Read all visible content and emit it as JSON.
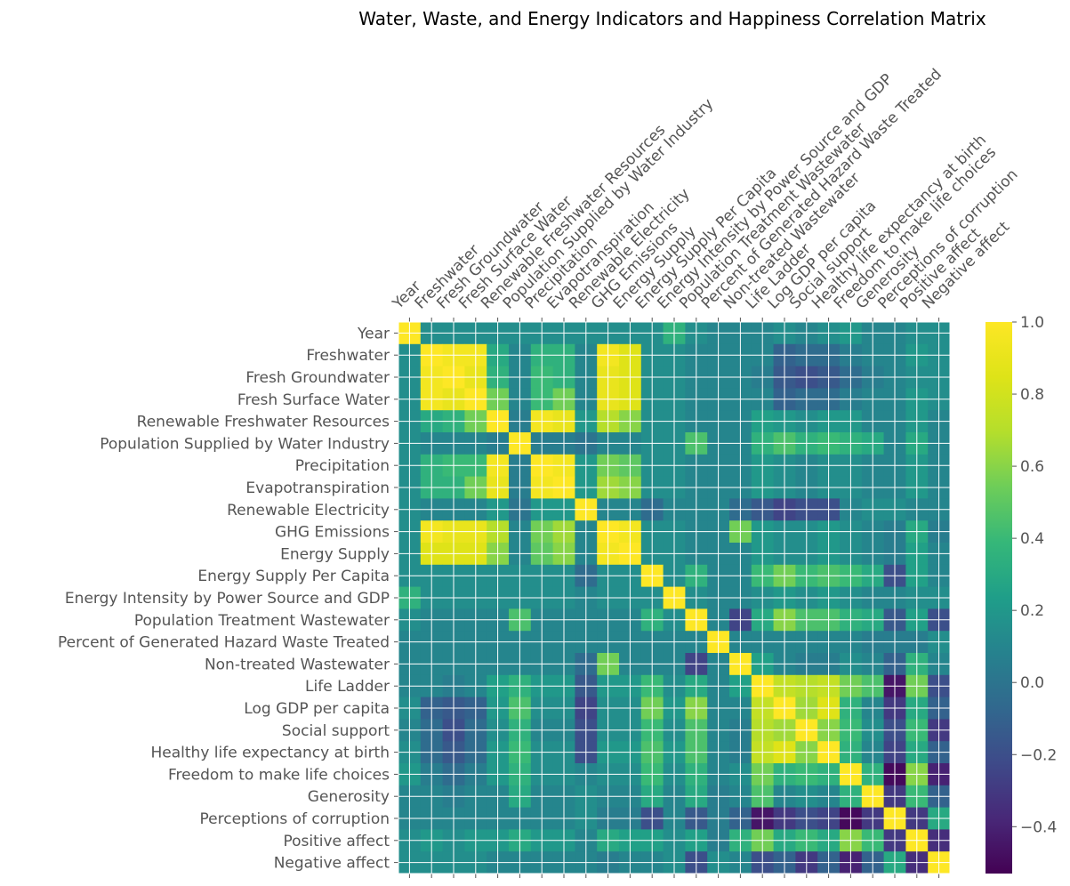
{
  "chart_data": {
    "type": "heatmap",
    "title": "Water, Waste, and Energy Indicators and Happiness Correlation Matrix",
    "variables": [
      "Year",
      "Freshwater",
      "Fresh Groundwater",
      "Fresh Surface Water",
      "Renewable Freshwater Resources",
      "Population Supplied by Water Industry",
      "Precipitation",
      "Evapotranspiration",
      "Renewable Electricity",
      "GHG Emissions",
      "Energy Supply",
      "Energy Supply Per Capita",
      "Energy Intensity by Power Source and GDP",
      "Population Treatment Wastewater",
      "Percent of Generated Hazard Waste Treated",
      "Non-treated Wastewater",
      "Life Ladder",
      "Log GDP per capita",
      "Social support",
      "Healthy life expectancy at birth",
      "Freedom to make life choices",
      "Generosity",
      "Perceptions of corruption",
      "Positive affect",
      "Negative affect"
    ],
    "matrix": [
      [
        1.0,
        0.15,
        0.15,
        0.15,
        0.15,
        0.15,
        0.15,
        0.15,
        0.15,
        0.15,
        0.15,
        0.15,
        0.35,
        0.15,
        0.1,
        0.1,
        0.1,
        0.15,
        0.1,
        0.15,
        0.2,
        0.1,
        0.1,
        0.15,
        0.15
      ],
      [
        0.15,
        1.0,
        0.95,
        0.95,
        0.3,
        0.1,
        0.35,
        0.35,
        0.1,
        0.95,
        0.85,
        0.15,
        0.15,
        0.1,
        0.1,
        0.1,
        0.1,
        -0.1,
        -0.05,
        -0.05,
        0.05,
        0.1,
        0.1,
        0.2,
        0.15
      ],
      [
        0.15,
        0.95,
        1.0,
        0.9,
        0.35,
        0.1,
        0.4,
        0.35,
        0.1,
        0.9,
        0.85,
        0.15,
        0.15,
        0.1,
        0.1,
        0.1,
        0.05,
        -0.15,
        -0.2,
        -0.15,
        -0.05,
        0.05,
        0.1,
        0.15,
        0.15
      ],
      [
        0.15,
        0.95,
        0.9,
        1.0,
        0.55,
        0.1,
        0.4,
        0.55,
        0.1,
        0.9,
        0.85,
        0.15,
        0.15,
        0.1,
        0.1,
        0.1,
        0.1,
        -0.1,
        -0.05,
        -0.05,
        0.05,
        0.1,
        0.1,
        0.2,
        0.15
      ],
      [
        0.15,
        0.3,
        0.35,
        0.55,
        1.0,
        0.05,
        0.95,
        0.9,
        0.2,
        0.7,
        0.6,
        0.15,
        0.15,
        0.1,
        0.1,
        0.1,
        0.25,
        0.2,
        0.15,
        0.2,
        0.2,
        0.1,
        0.1,
        0.2,
        0.1
      ],
      [
        0.15,
        0.1,
        0.1,
        0.1,
        0.05,
        1.0,
        0.05,
        0.05,
        0.0,
        0.1,
        0.1,
        0.15,
        0.15,
        0.45,
        0.1,
        0.1,
        0.35,
        0.45,
        0.35,
        0.4,
        0.35,
        0.3,
        0.1,
        0.3,
        0.1
      ],
      [
        0.15,
        0.35,
        0.4,
        0.4,
        0.95,
        0.05,
        1.0,
        0.95,
        0.2,
        0.55,
        0.5,
        0.15,
        0.15,
        0.1,
        0.1,
        0.1,
        0.2,
        0.15,
        0.1,
        0.15,
        0.15,
        0.1,
        0.1,
        0.2,
        0.1
      ],
      [
        0.15,
        0.35,
        0.35,
        0.55,
        0.9,
        0.05,
        0.95,
        1.0,
        0.2,
        0.65,
        0.6,
        0.15,
        0.15,
        0.1,
        0.1,
        0.1,
        0.2,
        0.15,
        0.1,
        0.15,
        0.15,
        0.1,
        0.1,
        0.2,
        0.1
      ],
      [
        0.15,
        0.1,
        0.1,
        0.1,
        0.2,
        0.0,
        0.2,
        0.2,
        1.0,
        0.1,
        0.1,
        -0.05,
        0.1,
        0.1,
        0.1,
        -0.05,
        -0.15,
        -0.25,
        -0.2,
        -0.2,
        0.1,
        0.15,
        0.15,
        0.1,
        0.1
      ],
      [
        0.15,
        0.95,
        0.9,
        0.9,
        0.7,
        0.1,
        0.55,
        0.65,
        0.1,
        1.0,
        0.95,
        0.15,
        0.15,
        0.1,
        0.1,
        0.55,
        0.2,
        0.15,
        0.15,
        0.2,
        0.15,
        0.1,
        0.05,
        0.3,
        0.05
      ],
      [
        0.15,
        0.85,
        0.85,
        0.85,
        0.6,
        0.1,
        0.5,
        0.6,
        0.1,
        0.95,
        1.0,
        0.15,
        0.15,
        0.1,
        0.1,
        0.1,
        0.2,
        0.15,
        0.15,
        0.2,
        0.15,
        0.1,
        0.05,
        0.25,
        0.1
      ],
      [
        0.15,
        0.15,
        0.15,
        0.15,
        0.15,
        0.15,
        0.15,
        0.15,
        -0.05,
        0.15,
        0.15,
        1.0,
        0.15,
        0.35,
        0.1,
        0.1,
        0.4,
        0.55,
        0.4,
        0.45,
        0.4,
        0.3,
        -0.2,
        0.25,
        0.1
      ],
      [
        0.35,
        0.15,
        0.15,
        0.15,
        0.15,
        0.15,
        0.15,
        0.15,
        0.1,
        0.15,
        0.15,
        0.15,
        1.0,
        0.15,
        0.1,
        0.1,
        0.15,
        0.2,
        0.15,
        0.2,
        0.15,
        0.1,
        0.1,
        0.15,
        0.15
      ],
      [
        0.15,
        0.1,
        0.1,
        0.1,
        0.1,
        0.45,
        0.1,
        0.1,
        0.1,
        0.1,
        0.1,
        0.35,
        0.15,
        1.0,
        0.1,
        -0.25,
        0.3,
        0.6,
        0.45,
        0.45,
        0.35,
        0.3,
        -0.15,
        0.25,
        -0.2
      ],
      [
        0.1,
        0.1,
        0.1,
        0.1,
        0.1,
        0.1,
        0.1,
        0.1,
        0.1,
        0.1,
        0.1,
        0.1,
        0.1,
        0.1,
        1.0,
        0.1,
        0.1,
        0.1,
        0.1,
        0.1,
        0.1,
        0.05,
        0.05,
        0.05,
        0.15
      ],
      [
        0.1,
        0.1,
        0.1,
        0.1,
        0.1,
        0.1,
        0.1,
        0.1,
        -0.05,
        0.55,
        0.1,
        0.1,
        0.1,
        -0.25,
        0.1,
        1.0,
        0.25,
        0.1,
        0.05,
        0.05,
        0.15,
        0.1,
        -0.1,
        0.35,
        0.1
      ],
      [
        0.1,
        0.1,
        0.05,
        0.1,
        0.25,
        0.35,
        0.2,
        0.2,
        -0.15,
        0.2,
        0.2,
        0.4,
        0.15,
        0.3,
        0.1,
        0.25,
        1.0,
        0.75,
        0.7,
        0.75,
        0.55,
        0.45,
        -0.45,
        0.55,
        -0.2
      ],
      [
        0.15,
        -0.1,
        -0.15,
        -0.1,
        0.2,
        0.45,
        0.15,
        0.15,
        -0.25,
        0.15,
        0.15,
        0.55,
        0.2,
        0.6,
        0.1,
        0.1,
        0.75,
        1.0,
        0.65,
        0.85,
        0.35,
        0.1,
        -0.3,
        0.3,
        -0.1
      ],
      [
        0.1,
        -0.05,
        -0.2,
        -0.05,
        0.15,
        0.35,
        0.1,
        0.1,
        -0.2,
        0.15,
        0.15,
        0.4,
        0.15,
        0.45,
        0.1,
        0.05,
        0.7,
        0.65,
        1.0,
        0.6,
        0.4,
        0.15,
        -0.2,
        0.4,
        -0.3
      ],
      [
        0.15,
        -0.05,
        -0.15,
        -0.05,
        0.2,
        0.4,
        0.15,
        0.15,
        -0.2,
        0.2,
        0.2,
        0.45,
        0.2,
        0.45,
        0.1,
        0.05,
        0.75,
        0.85,
        0.6,
        1.0,
        0.35,
        0.1,
        -0.25,
        0.3,
        -0.1
      ],
      [
        0.2,
        0.05,
        -0.05,
        0.05,
        0.2,
        0.35,
        0.15,
        0.15,
        0.1,
        0.15,
        0.15,
        0.4,
        0.15,
        0.35,
        0.1,
        0.15,
        0.55,
        0.35,
        0.4,
        0.35,
        1.0,
        0.35,
        -0.5,
        0.6,
        -0.4
      ],
      [
        0.1,
        0.1,
        0.05,
        0.1,
        0.1,
        0.3,
        0.1,
        0.1,
        0.15,
        0.1,
        0.1,
        0.3,
        0.1,
        0.3,
        0.05,
        0.1,
        0.45,
        0.1,
        0.15,
        0.1,
        0.35,
        1.0,
        -0.3,
        0.4,
        -0.1
      ],
      [
        0.1,
        0.1,
        0.1,
        0.1,
        0.1,
        0.1,
        0.1,
        0.1,
        0.15,
        0.05,
        0.05,
        -0.2,
        0.1,
        -0.15,
        0.05,
        -0.1,
        -0.45,
        -0.3,
        -0.2,
        -0.25,
        -0.5,
        -0.3,
        1.0,
        -0.3,
        0.3
      ],
      [
        0.15,
        0.2,
        0.15,
        0.2,
        0.2,
        0.3,
        0.2,
        0.2,
        0.1,
        0.3,
        0.25,
        0.25,
        0.15,
        0.25,
        0.05,
        0.35,
        0.55,
        0.3,
        0.4,
        0.3,
        0.6,
        0.4,
        -0.3,
        1.0,
        -0.35
      ],
      [
        0.15,
        0.15,
        0.15,
        0.15,
        0.1,
        0.1,
        0.1,
        0.1,
        0.1,
        0.05,
        0.1,
        0.1,
        0.15,
        -0.2,
        0.15,
        0.1,
        -0.2,
        -0.1,
        -0.3,
        -0.1,
        -0.4,
        -0.1,
        0.3,
        -0.35,
        1.0
      ]
    ],
    "colormap": "viridis",
    "vmin": -0.53,
    "vmax": 1.0,
    "colorbar_ticks": [
      -0.4,
      -0.2,
      0.0,
      0.2,
      0.4,
      0.6,
      0.8,
      1.0
    ],
    "colorbar_tick_labels": [
      "−0.4",
      "−0.2",
      "0.0",
      "0.2",
      "0.4",
      "0.6",
      "0.8",
      "1.0"
    ],
    "grid": true,
    "xlabel": "",
    "ylabel": "",
    "legend": "colorbar-right"
  }
}
